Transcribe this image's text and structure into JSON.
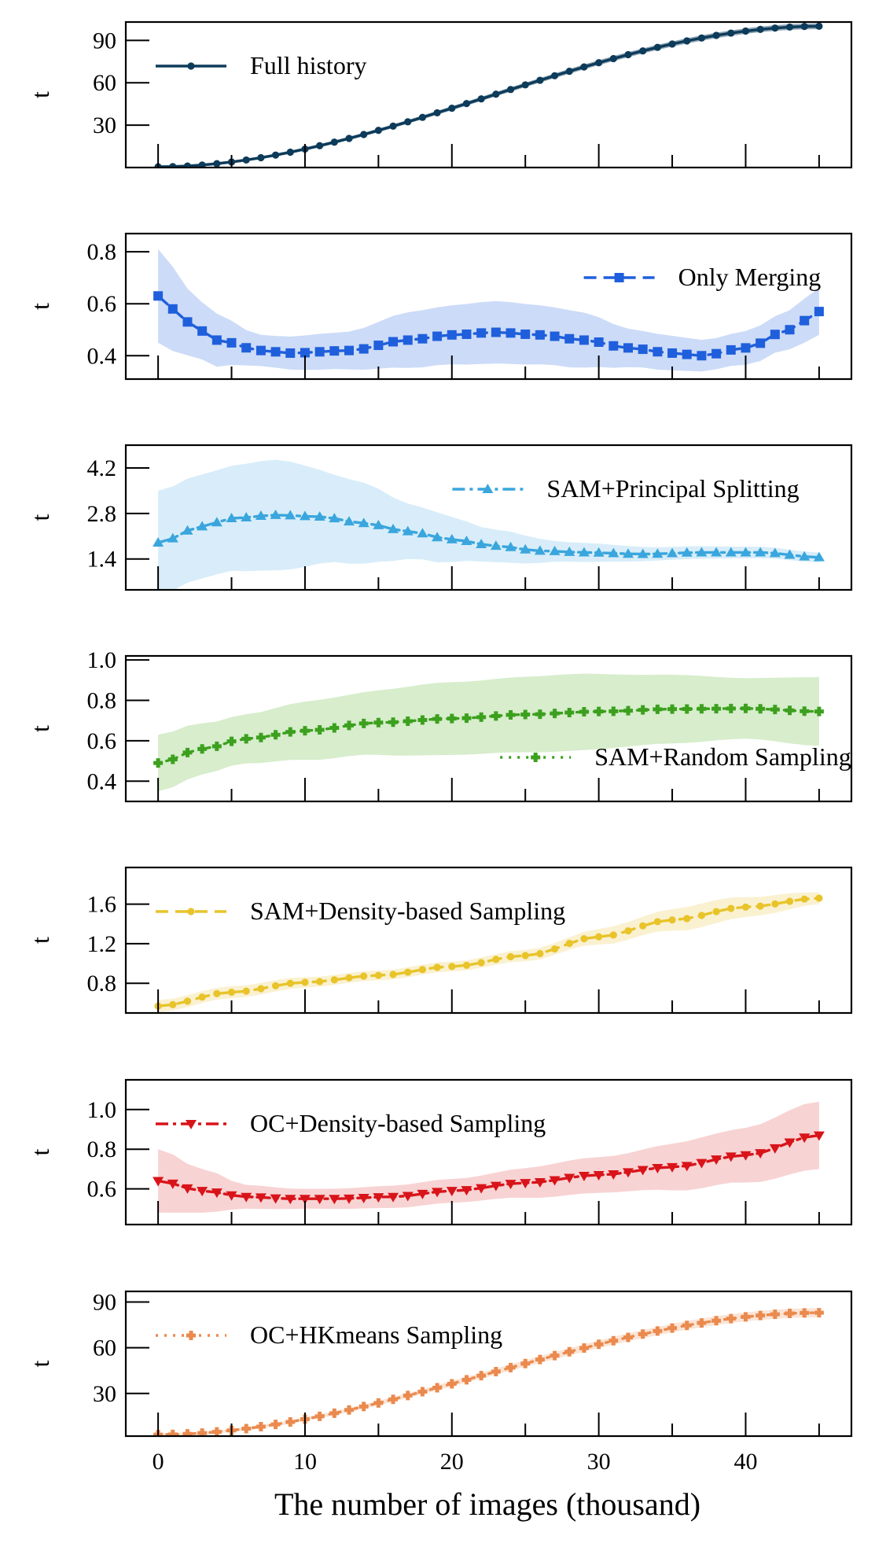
{
  "chart_data": [
    {
      "type": "line",
      "legend": "Full history",
      "legend_position": "top-left",
      "color": "#0d3b5a",
      "band_color": "#0d3b5a",
      "marker": "circle",
      "dash": "solid",
      "ylabel": "t",
      "ylim": [
        0,
        103
      ],
      "yticks": [
        30,
        60,
        90
      ],
      "ytick_labels": [
        "30",
        "60",
        "90"
      ],
      "anchors": [
        [
          0,
          0.5
        ],
        [
          45,
          100
        ]
      ],
      "band_anchors": [
        [
          0,
          1
        ],
        [
          45,
          2
        ]
      ]
    },
    {
      "type": "line",
      "legend": "Only Merging",
      "legend_position": "top-right",
      "color": "#1f5fdc",
      "band_color": "#8fb0ee",
      "marker": "square",
      "dash": "dash",
      "ylabel": "t",
      "ylim": [
        0.31,
        0.87
      ],
      "yticks": [
        0.4,
        0.6,
        0.8
      ],
      "ytick_labels": [
        "0.4",
        "0.6",
        "0.8"
      ],
      "anchors": [
        [
          0,
          0.63
        ],
        [
          2,
          0.53
        ],
        [
          4,
          0.46
        ],
        [
          7,
          0.42
        ],
        [
          9,
          0.41
        ],
        [
          13,
          0.42
        ],
        [
          17,
          0.46
        ],
        [
          20,
          0.48
        ],
        [
          23,
          0.49
        ],
        [
          26,
          0.48
        ],
        [
          29,
          0.46
        ],
        [
          32,
          0.43
        ],
        [
          35,
          0.41
        ],
        [
          37,
          0.4
        ],
        [
          40,
          0.43
        ],
        [
          43,
          0.5
        ],
        [
          45,
          0.57
        ]
      ],
      "band_anchors": [
        [
          0,
          0.18
        ],
        [
          3,
          0.11
        ],
        [
          7,
          0.06
        ],
        [
          12,
          0.07
        ],
        [
          18,
          0.11
        ],
        [
          23,
          0.12
        ],
        [
          28,
          0.11
        ],
        [
          33,
          0.07
        ],
        [
          38,
          0.06
        ],
        [
          42,
          0.07
        ],
        [
          45,
          0.09
        ]
      ]
    },
    {
      "type": "line",
      "legend": "SAM+Principal Splitting",
      "legend_position": "top-right",
      "color": "#3aa6dd",
      "band_color": "#a9d8f2",
      "marker": "triangle-up",
      "dash": "dashdot",
      "ylabel": "t",
      "ylim": [
        0.45,
        4.9
      ],
      "yticks": [
        1.4,
        2.8,
        4.2
      ],
      "ytick_labels": [
        "1.4",
        "2.8",
        "4.2"
      ],
      "anchors": [
        [
          0,
          1.9
        ],
        [
          3,
          2.4
        ],
        [
          5,
          2.65
        ],
        [
          8,
          2.75
        ],
        [
          11,
          2.7
        ],
        [
          14,
          2.5
        ],
        [
          17,
          2.25
        ],
        [
          20,
          2.0
        ],
        [
          23,
          1.8
        ],
        [
          26,
          1.65
        ],
        [
          29,
          1.6
        ],
        [
          33,
          1.55
        ],
        [
          37,
          1.6
        ],
        [
          41,
          1.6
        ],
        [
          45,
          1.45
        ]
      ],
      "band_anchors": [
        [
          0,
          1.6
        ],
        [
          4,
          1.6
        ],
        [
          8,
          1.7
        ],
        [
          13,
          1.3
        ],
        [
          18,
          0.8
        ],
        [
          23,
          0.5
        ],
        [
          28,
          0.3
        ],
        [
          35,
          0.2
        ],
        [
          40,
          0.18
        ],
        [
          45,
          0.15
        ]
      ]
    },
    {
      "type": "line",
      "legend": "SAM+Random Sampling",
      "legend_position": "bottom-right",
      "color": "#3ca01e",
      "band_color": "#a6d88e",
      "marker": "plus",
      "dash": "dotted",
      "ylabel": "t",
      "ylim": [
        0.3,
        1.02
      ],
      "yticks": [
        0.4,
        0.6,
        0.8,
        1.0
      ],
      "ytick_labels": [
        "0.4",
        "0.6",
        "0.8",
        "1.0"
      ],
      "anchors": [
        [
          0,
          0.49
        ],
        [
          3,
          0.56
        ],
        [
          6,
          0.61
        ],
        [
          10,
          0.65
        ],
        [
          15,
          0.69
        ],
        [
          20,
          0.71
        ],
        [
          25,
          0.73
        ],
        [
          30,
          0.745
        ],
        [
          35,
          0.757
        ],
        [
          40,
          0.76
        ],
        [
          45,
          0.745
        ]
      ],
      "band_anchors": [
        [
          0,
          0.14
        ],
        [
          5,
          0.12
        ],
        [
          12,
          0.15
        ],
        [
          20,
          0.18
        ],
        [
          28,
          0.19
        ],
        [
          35,
          0.17
        ],
        [
          40,
          0.15
        ],
        [
          45,
          0.17
        ]
      ]
    },
    {
      "type": "line",
      "legend": "SAM+Density-based Sampling",
      "legend_position": "top-left",
      "color": "#e8c42a",
      "band_color": "#f4df9a",
      "marker": "circle",
      "dash": "dash",
      "ylabel": "t",
      "ylim": [
        0.5,
        1.97
      ],
      "yticks": [
        0.8,
        1.2,
        1.6
      ],
      "ytick_labels": [
        "0.8",
        "1.2",
        "1.6"
      ],
      "anchors": [
        [
          0,
          0.57
        ],
        [
          5,
          0.71
        ],
        [
          10,
          0.81
        ],
        [
          15,
          0.88
        ],
        [
          20,
          0.97
        ],
        [
          25,
          1.08
        ],
        [
          30,
          1.27
        ],
        [
          35,
          1.44
        ],
        [
          40,
          1.57
        ],
        [
          45,
          1.66
        ]
      ],
      "band_anchors": [
        [
          0,
          0.06
        ],
        [
          6,
          0.06
        ],
        [
          12,
          0.05
        ],
        [
          20,
          0.05
        ],
        [
          27,
          0.06
        ],
        [
          32,
          0.09
        ],
        [
          37,
          0.12
        ],
        [
          42,
          0.09
        ],
        [
          45,
          0.06
        ]
      ]
    },
    {
      "type": "line",
      "legend": "OC+Density-based Sampling",
      "legend_position": "top-left",
      "color": "#d8141a",
      "band_color": "#ef9e9e",
      "marker": "triangle-down",
      "dash": "dashdot",
      "ylabel": "t",
      "ylim": [
        0.42,
        1.15
      ],
      "yticks": [
        0.6,
        0.8,
        1.0
      ],
      "ytick_labels": [
        "0.6",
        "0.8",
        "1.0"
      ],
      "anchors": [
        [
          0,
          0.64
        ],
        [
          3,
          0.59
        ],
        [
          6,
          0.56
        ],
        [
          9,
          0.55
        ],
        [
          12,
          0.55
        ],
        [
          16,
          0.56
        ],
        [
          20,
          0.59
        ],
        [
          25,
          0.63
        ],
        [
          30,
          0.67
        ],
        [
          35,
          0.71
        ],
        [
          40,
          0.77
        ],
        [
          45,
          0.87
        ]
      ],
      "band_anchors": [
        [
          0,
          0.16
        ],
        [
          3,
          0.11
        ],
        [
          6,
          0.06
        ],
        [
          10,
          0.05
        ],
        [
          20,
          0.06
        ],
        [
          30,
          0.09
        ],
        [
          38,
          0.13
        ],
        [
          45,
          0.17
        ]
      ]
    },
    {
      "type": "line",
      "legend": "OC+HKmeans Sampling",
      "legend_position": "top-left",
      "color": "#ea8a4e",
      "band_color": "#f6c4a4",
      "marker": "plus",
      "dash": "dotted",
      "ylabel": "t",
      "ylim": [
        2,
        97
      ],
      "yticks": [
        30,
        60,
        90
      ],
      "ytick_labels": [
        "30",
        "60",
        "90"
      ],
      "anchors": [
        [
          0,
          3
        ],
        [
          45,
          83
        ]
      ],
      "band_anchors": [
        [
          0,
          1
        ],
        [
          45,
          3
        ]
      ]
    }
  ],
  "x_axis": {
    "label": "The number of images (thousand)",
    "ticks": [
      0,
      10,
      20,
      30,
      40
    ],
    "tick_labels": [
      "0",
      "10",
      "20",
      "30",
      "40"
    ],
    "minor_ticks": [
      5,
      15,
      25,
      35,
      45
    ],
    "xlim": [
      -2.2,
      47.2
    ]
  },
  "series_x": {
    "start": 0,
    "end": 45,
    "points": 46
  }
}
